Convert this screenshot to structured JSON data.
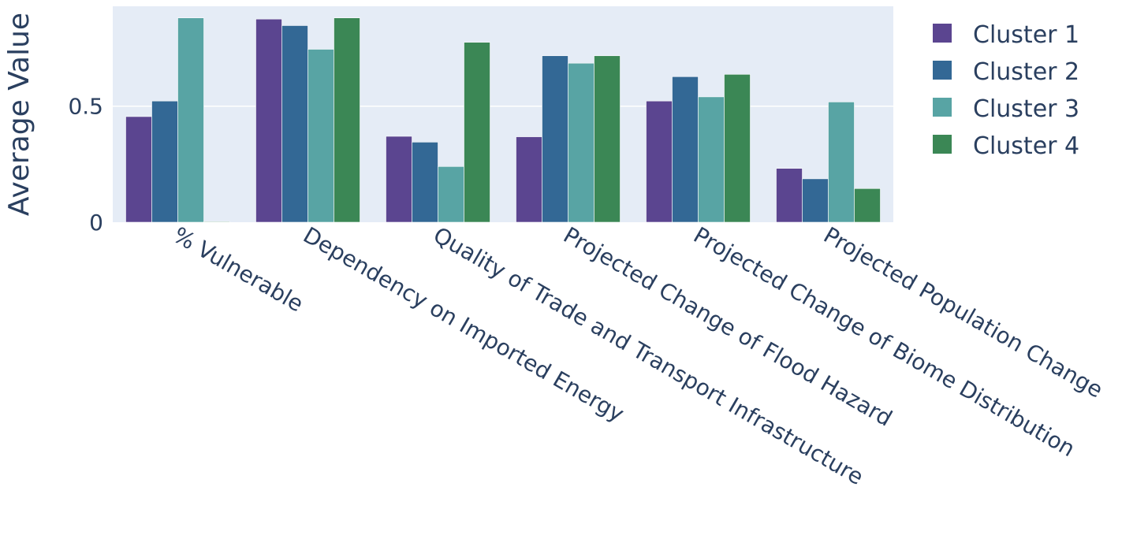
{
  "chart_data": {
    "type": "bar",
    "title": "",
    "xlabel": "",
    "ylabel": "Average Value",
    "ylim": [
      0,
      0.93
    ],
    "yticks": [
      0,
      0.5
    ],
    "ytick_labels": [
      "0",
      "0.5"
    ],
    "grid": true,
    "legend_position": "right",
    "categories": [
      "% Vulnerable",
      "Dependency on Imported Energy",
      "Quality of Trade and Transport Infrastructure",
      "Projected Change of Flood Hazard",
      "Projected Change of Biome Distribution",
      "Projected Population Change"
    ],
    "series": [
      {
        "name": "Cluster 1",
        "color": "#5b4590",
        "values": [
          0.455,
          0.875,
          0.37,
          0.368,
          0.522,
          0.232
        ]
      },
      {
        "name": "Cluster 2",
        "color": "#336895",
        "values": [
          0.522,
          0.847,
          0.345,
          0.717,
          0.627,
          0.187
        ]
      },
      {
        "name": "Cluster 3",
        "color": "#58a4a4",
        "values": [
          0.88,
          0.745,
          0.24,
          0.685,
          0.54,
          0.518
        ]
      },
      {
        "name": "Cluster 4",
        "color": "#3b8755",
        "values": [
          0.0,
          0.88,
          0.775,
          0.717,
          0.637,
          0.145
        ]
      }
    ]
  }
}
